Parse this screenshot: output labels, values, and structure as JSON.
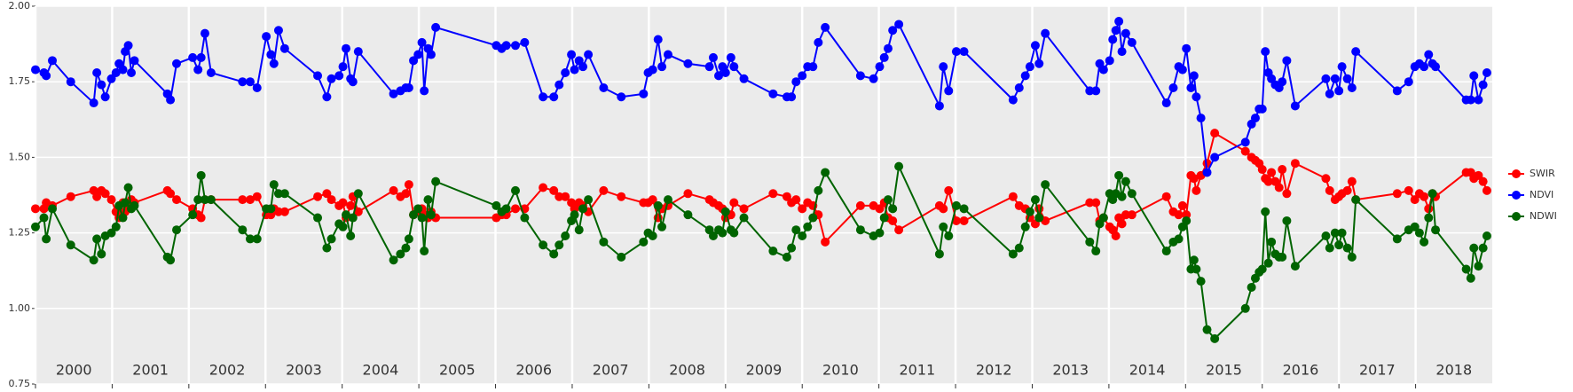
{
  "chart_data": {
    "type": "line",
    "x": [
      2000.0,
      2000.11,
      2000.14,
      2000.22,
      2000.46,
      2000.76,
      2000.8,
      2000.86,
      2000.91,
      2000.99,
      2001.05,
      2001.09,
      2001.14,
      2001.17,
      2001.21,
      2001.25,
      2001.29,
      2001.72,
      2001.76,
      2001.84,
      2002.05,
      2002.12,
      2002.16,
      2002.21,
      2002.29,
      2002.7,
      2002.8,
      2002.89,
      2003.01,
      2003.07,
      2003.11,
      2003.17,
      2003.25,
      2003.68,
      2003.8,
      2003.86,
      2003.96,
      2004.01,
      2004.05,
      2004.11,
      2004.14,
      2004.21,
      2004.67,
      2004.76,
      2004.83,
      2004.87,
      2004.93,
      2004.99,
      2005.04,
      2005.07,
      2005.12,
      2005.16,
      2005.22,
      2006.01,
      2006.08,
      2006.14,
      2006.26,
      2006.38,
      2006.62,
      2006.76,
      2006.83,
      2006.91,
      2006.99,
      2007.03,
      2007.09,
      2007.14,
      2007.21,
      2007.41,
      2007.64,
      2007.93,
      2007.99,
      2008.05,
      2008.12,
      2008.17,
      2008.25,
      2008.51,
      2008.79,
      2008.84,
      2008.91,
      2008.96,
      2009.0,
      2009.07,
      2009.11,
      2009.24,
      2009.62,
      2009.8,
      2009.86,
      2009.92,
      2010.0,
      2010.07,
      2010.14,
      2010.21,
      2010.3,
      2010.76,
      2010.93,
      2011.01,
      2011.07,
      2011.12,
      2011.18,
      2011.26,
      2011.79,
      2011.84,
      2011.91,
      2012.01,
      2012.11,
      2012.75,
      2012.83,
      2012.91,
      2012.97,
      2013.04,
      2013.09,
      2013.17,
      2013.75,
      2013.83,
      2013.88,
      2013.93,
      2014.01,
      2014.05,
      2014.09,
      2014.13,
      2014.17,
      2014.22,
      2014.3,
      2014.75,
      2014.84,
      2014.91,
      2014.96,
      2015.01,
      2015.07,
      2015.11,
      2015.14,
      2015.2,
      2015.28,
      2015.38,
      2015.78,
      2015.86,
      2015.91,
      2015.96,
      2016.0,
      2016.04,
      2016.08,
      2016.12,
      2016.17,
      2016.22,
      2016.26,
      2016.32,
      2016.43,
      2016.83,
      2016.88,
      2016.95,
      2017.0,
      2017.04,
      2017.11,
      2017.17,
      2017.22,
      2017.76,
      2017.91,
      2017.99,
      2018.05,
      2018.11,
      2018.17,
      2018.22,
      2018.26,
      2018.66,
      2018.72,
      2018.76,
      2018.82,
      2018.88,
      2018.93
    ],
    "series": [
      {
        "name": "SWIR",
        "color": "#ff0000",
        "values": [
          1.33,
          1.33,
          1.35,
          1.34,
          1.37,
          1.39,
          1.37,
          1.39,
          1.38,
          1.36,
          1.32,
          1.3,
          1.35,
          1.32,
          1.34,
          1.36,
          1.35,
          1.39,
          1.38,
          1.36,
          1.33,
          1.31,
          1.3,
          1.36,
          1.36,
          1.36,
          1.36,
          1.37,
          1.31,
          1.31,
          1.33,
          1.32,
          1.32,
          1.37,
          1.38,
          1.36,
          1.34,
          1.35,
          1.3,
          1.34,
          1.37,
          1.32,
          1.39,
          1.37,
          1.38,
          1.41,
          1.31,
          1.32,
          1.33,
          1.31,
          1.3,
          1.32,
          1.3,
          1.3,
          1.31,
          1.31,
          1.33,
          1.33,
          1.4,
          1.39,
          1.37,
          1.37,
          1.35,
          1.33,
          1.35,
          1.34,
          1.32,
          1.39,
          1.37,
          1.35,
          1.35,
          1.36,
          1.3,
          1.33,
          1.34,
          1.38,
          1.36,
          1.35,
          1.34,
          1.33,
          1.3,
          1.31,
          1.35,
          1.33,
          1.38,
          1.37,
          1.35,
          1.36,
          1.33,
          1.35,
          1.34,
          1.31,
          1.22,
          1.34,
          1.34,
          1.33,
          1.35,
          1.3,
          1.29,
          1.26,
          1.34,
          1.33,
          1.39,
          1.29,
          1.29,
          1.37,
          1.34,
          1.33,
          1.3,
          1.28,
          1.33,
          1.29,
          1.35,
          1.35,
          1.29,
          1.3,
          1.27,
          1.26,
          1.24,
          1.3,
          1.28,
          1.31,
          1.31,
          1.37,
          1.32,
          1.31,
          1.34,
          1.31,
          1.44,
          1.43,
          1.39,
          1.44,
          1.48,
          1.58,
          1.52,
          1.5,
          1.49,
          1.48,
          1.46,
          1.43,
          1.42,
          1.45,
          1.42,
          1.4,
          1.46,
          1.38,
          1.48,
          1.43,
          1.39,
          1.36,
          1.37,
          1.38,
          1.39,
          1.42,
          1.36,
          1.38,
          1.39,
          1.36,
          1.38,
          1.37,
          1.33,
          1.38,
          1.37,
          1.45,
          1.45,
          1.43,
          1.44,
          1.42,
          1.39
        ]
      },
      {
        "name": "NDVI",
        "color": "#0000ff",
        "values": [
          1.79,
          1.78,
          1.77,
          1.82,
          1.75,
          1.68,
          1.78,
          1.74,
          1.7,
          1.76,
          1.78,
          1.81,
          1.79,
          1.85,
          1.87,
          1.78,
          1.82,
          1.71,
          1.69,
          1.81,
          1.83,
          1.79,
          1.83,
          1.91,
          1.78,
          1.75,
          1.75,
          1.73,
          1.9,
          1.84,
          1.81,
          1.92,
          1.86,
          1.77,
          1.7,
          1.76,
          1.77,
          1.8,
          1.86,
          1.76,
          1.75,
          1.85,
          1.71,
          1.72,
          1.73,
          1.73,
          1.82,
          1.84,
          1.88,
          1.72,
          1.86,
          1.84,
          1.93,
          1.87,
          1.86,
          1.87,
          1.87,
          1.88,
          1.7,
          1.7,
          1.74,
          1.78,
          1.84,
          1.79,
          1.82,
          1.8,
          1.84,
          1.73,
          1.7,
          1.71,
          1.78,
          1.79,
          1.89,
          1.8,
          1.84,
          1.81,
          1.8,
          1.83,
          1.77,
          1.8,
          1.78,
          1.83,
          1.8,
          1.76,
          1.71,
          1.7,
          1.7,
          1.75,
          1.77,
          1.8,
          1.8,
          1.88,
          1.93,
          1.77,
          1.76,
          1.8,
          1.83,
          1.86,
          1.92,
          1.94,
          1.67,
          1.8,
          1.72,
          1.85,
          1.85,
          1.69,
          1.73,
          1.77,
          1.8,
          1.87,
          1.81,
          1.91,
          1.72,
          1.72,
          1.81,
          1.79,
          1.82,
          1.89,
          1.92,
          1.95,
          1.85,
          1.91,
          1.88,
          1.68,
          1.73,
          1.8,
          1.79,
          1.86,
          1.73,
          1.77,
          1.7,
          1.63,
          1.45,
          1.5,
          1.55,
          1.61,
          1.63,
          1.66,
          1.66,
          1.85,
          1.78,
          1.76,
          1.74,
          1.73,
          1.75,
          1.82,
          1.67,
          1.76,
          1.71,
          1.76,
          1.72,
          1.8,
          1.76,
          1.73,
          1.85,
          1.72,
          1.75,
          1.8,
          1.81,
          1.8,
          1.84,
          1.81,
          1.8,
          1.69,
          1.69,
          1.77,
          1.69,
          1.74,
          1.78
        ]
      },
      {
        "name": "NDWI",
        "color": "#006400",
        "values": [
          1.27,
          1.3,
          1.23,
          1.33,
          1.21,
          1.16,
          1.23,
          1.18,
          1.24,
          1.25,
          1.27,
          1.34,
          1.3,
          1.35,
          1.4,
          1.33,
          1.34,
          1.17,
          1.16,
          1.26,
          1.31,
          1.36,
          1.44,
          1.36,
          1.36,
          1.26,
          1.23,
          1.23,
          1.33,
          1.33,
          1.41,
          1.38,
          1.38,
          1.3,
          1.2,
          1.23,
          1.28,
          1.27,
          1.31,
          1.24,
          1.3,
          1.38,
          1.16,
          1.18,
          1.2,
          1.23,
          1.31,
          1.33,
          1.3,
          1.19,
          1.36,
          1.31,
          1.42,
          1.34,
          1.32,
          1.33,
          1.39,
          1.3,
          1.21,
          1.18,
          1.21,
          1.24,
          1.29,
          1.31,
          1.26,
          1.33,
          1.36,
          1.22,
          1.17,
          1.22,
          1.25,
          1.24,
          1.34,
          1.27,
          1.36,
          1.31,
          1.26,
          1.24,
          1.26,
          1.25,
          1.32,
          1.26,
          1.25,
          1.3,
          1.19,
          1.17,
          1.2,
          1.26,
          1.24,
          1.27,
          1.3,
          1.39,
          1.45,
          1.26,
          1.24,
          1.25,
          1.3,
          1.36,
          1.33,
          1.47,
          1.18,
          1.27,
          1.24,
          1.34,
          1.33,
          1.18,
          1.2,
          1.27,
          1.32,
          1.36,
          1.3,
          1.41,
          1.22,
          1.19,
          1.28,
          1.3,
          1.38,
          1.36,
          1.38,
          1.44,
          1.37,
          1.42,
          1.38,
          1.19,
          1.22,
          1.23,
          1.27,
          1.29,
          1.13,
          1.16,
          1.13,
          1.09,
          0.93,
          0.9,
          1.0,
          1.07,
          1.1,
          1.12,
          1.13,
          1.32,
          1.15,
          1.22,
          1.18,
          1.17,
          1.17,
          1.29,
          1.14,
          1.24,
          1.2,
          1.25,
          1.21,
          1.25,
          1.2,
          1.17,
          1.36,
          1.23,
          1.26,
          1.27,
          1.25,
          1.22,
          1.3,
          1.38,
          1.26,
          1.13,
          1.1,
          1.2,
          1.14,
          1.2,
          1.24
        ]
      }
    ],
    "xlim": [
      2000,
      2019
    ],
    "xticks": [
      2000,
      2001,
      2002,
      2003,
      2004,
      2005,
      2006,
      2007,
      2008,
      2009,
      2010,
      2011,
      2012,
      2013,
      2014,
      2015,
      2016,
      2017,
      2018
    ],
    "ylim": [
      0.75,
      2.0
    ],
    "yticks": [
      0.75,
      {
        "value": 1.0,
        "label": "1.00"
      },
      1.25,
      {
        "value": 1.5,
        "label": "1.50"
      },
      1.75,
      {
        "value": 2.0,
        "label": "2.00"
      }
    ],
    "grid": true,
    "legend": "right"
  }
}
